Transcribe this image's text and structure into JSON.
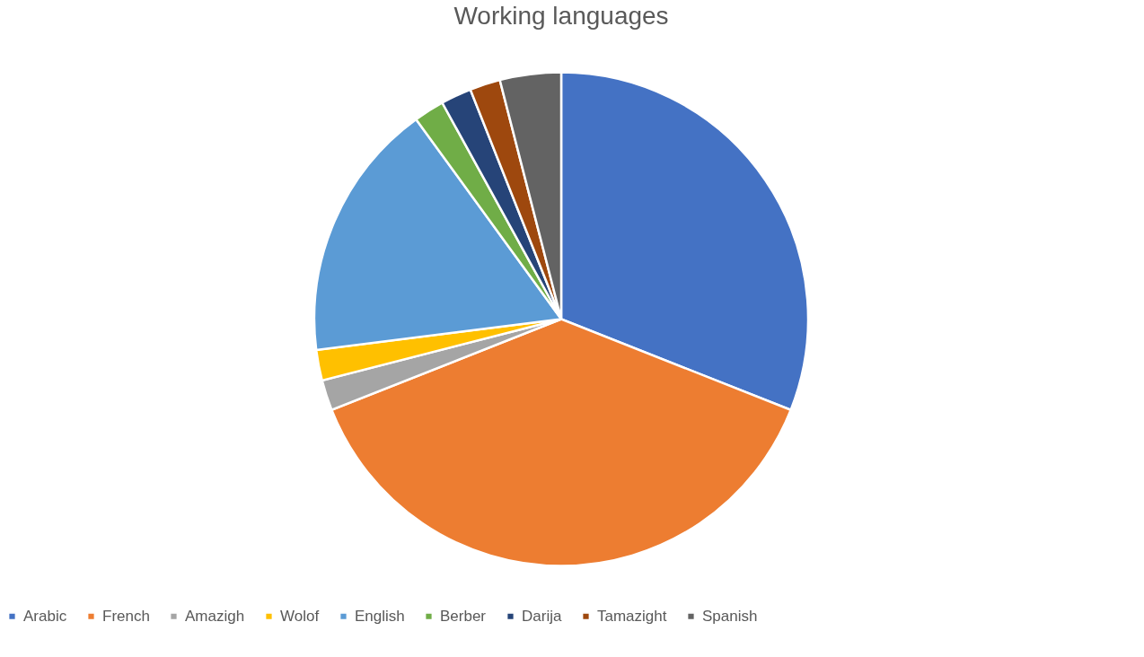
{
  "chart_data": {
    "type": "pie",
    "title": "Working languages",
    "categories": [
      "Arabic",
      "French",
      "Amazigh",
      "Wolof",
      "English",
      "Berber",
      "Darija",
      "Tamazight",
      "Spanish"
    ],
    "values": [
      31,
      38,
      2,
      2,
      17,
      2,
      2,
      2,
      4
    ],
    "colors": [
      "#4472c4",
      "#ed7d31",
      "#a5a5a5",
      "#ffc000",
      "#5b9bd5",
      "#70ad47",
      "#264478",
      "#9e480e",
      "#636363"
    ],
    "legend": "bottom"
  }
}
